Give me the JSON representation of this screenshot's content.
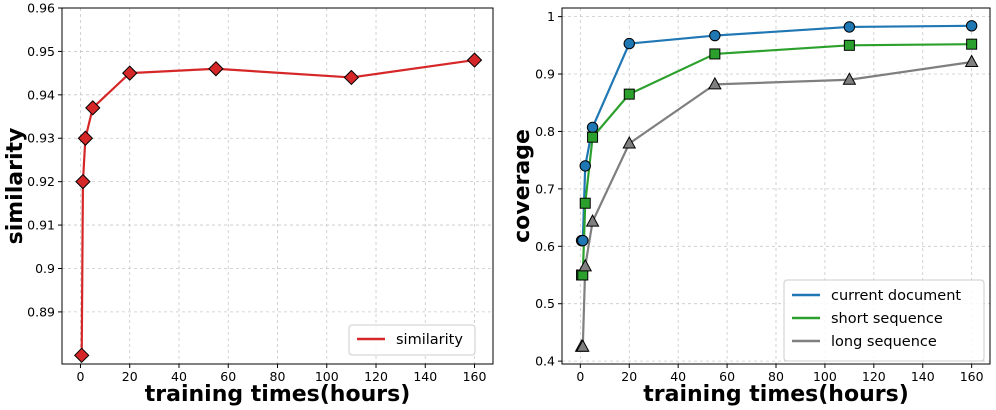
{
  "chart_data": [
    {
      "type": "line",
      "title": "",
      "xlabel": "training times(hours)",
      "ylabel": "similarity",
      "xlim": [
        -7.5,
        167.5
      ],
      "ylim": [
        0.878,
        0.96
      ],
      "xticks": [
        0,
        20,
        40,
        60,
        80,
        100,
        120,
        140,
        160
      ],
      "xtick_labels": [
        "0",
        "20",
        "40",
        "60",
        "80",
        "100",
        "120",
        "140",
        "160"
      ],
      "yticks": [
        0.89,
        0.9,
        0.91,
        0.92,
        0.93,
        0.94,
        0.95,
        0.96
      ],
      "ytick_labels": [
        "0.89",
        "0.9",
        "0.91",
        "0.92",
        "0.93",
        "0.94",
        "0.95",
        "0.96"
      ],
      "grid": true,
      "legend_position": "bottom-right",
      "x": [
        0.5,
        1,
        2,
        5,
        20,
        55,
        110,
        160
      ],
      "series": [
        {
          "name": "similarity",
          "color": "#d62728",
          "marker": "diamond",
          "values": [
            0.88,
            0.92,
            0.93,
            0.937,
            0.945,
            0.946,
            0.944,
            0.948
          ]
        }
      ]
    },
    {
      "type": "line",
      "title": "",
      "xlabel": "training times(hours)",
      "ylabel": "coverage",
      "xlim": [
        -7.5,
        167.5
      ],
      "ylim": [
        0.395,
        1.015
      ],
      "xticks": [
        0,
        20,
        40,
        60,
        80,
        100,
        120,
        140,
        160
      ],
      "xtick_labels": [
        "0",
        "20",
        "40",
        "60",
        "80",
        "100",
        "120",
        "140",
        "160"
      ],
      "yticks": [
        0.4,
        0.5,
        0.6,
        0.7,
        0.8,
        0.9,
        1.0
      ],
      "ytick_labels": [
        "0.4",
        "0.5",
        "0.6",
        "0.7",
        "0.8",
        "0.9",
        "1"
      ],
      "grid": true,
      "legend_position": "bottom-right",
      "x": [
        0.5,
        1,
        2,
        5,
        20,
        55,
        110,
        160
      ],
      "series": [
        {
          "name": "current document",
          "color": "#1f77b4",
          "marker": "circle",
          "values": [
            0.61,
            0.61,
            0.74,
            0.807,
            0.953,
            0.967,
            0.982,
            0.984
          ]
        },
        {
          "name": "short sequence",
          "color": "#2ca02c",
          "marker": "square",
          "values": [
            0.55,
            0.55,
            0.675,
            0.79,
            0.865,
            0.935,
            0.95,
            0.952
          ]
        },
        {
          "name": "long sequence",
          "color": "#7f7f7f",
          "marker": "triangle",
          "values": [
            0.425,
            0.425,
            0.565,
            0.643,
            0.779,
            0.882,
            0.89,
            0.921
          ]
        }
      ]
    }
  ]
}
